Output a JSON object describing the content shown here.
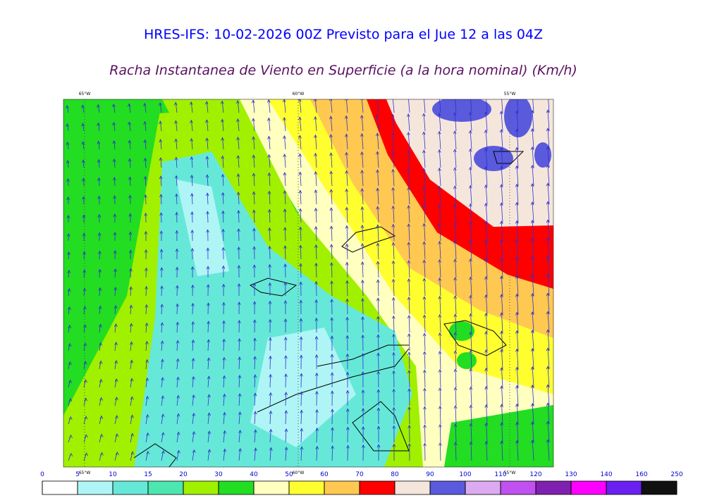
{
  "header": {
    "title": "HRES-IFS: 10-02-2026 00Z Previsto para el Jue 12 a las 04Z",
    "subtitle": "Racha Instantanea de Viento en Superficie (a la hora nominal) (Km/h)"
  },
  "map": {
    "longitudes": [
      "65°W",
      "60°W",
      "55°W"
    ]
  },
  "colorbar": {
    "ticks": [
      0,
      5,
      10,
      15,
      20,
      30,
      40,
      50,
      60,
      70,
      80,
      90,
      100,
      110,
      120,
      130,
      140,
      160,
      250
    ],
    "colors": [
      "#ffffff",
      "#aff5f5",
      "#66e8d8",
      "#4de6b0",
      "#a0f000",
      "#22dd22",
      "#ffffc0",
      "#ffff30",
      "#ffc850",
      "#ff0000",
      "#f5e6dc",
      "#5a5adc",
      "#dcaaf0",
      "#c050f0",
      "#8020b0",
      "#ff00ff",
      "#6a20f0",
      "#101010"
    ]
  }
}
